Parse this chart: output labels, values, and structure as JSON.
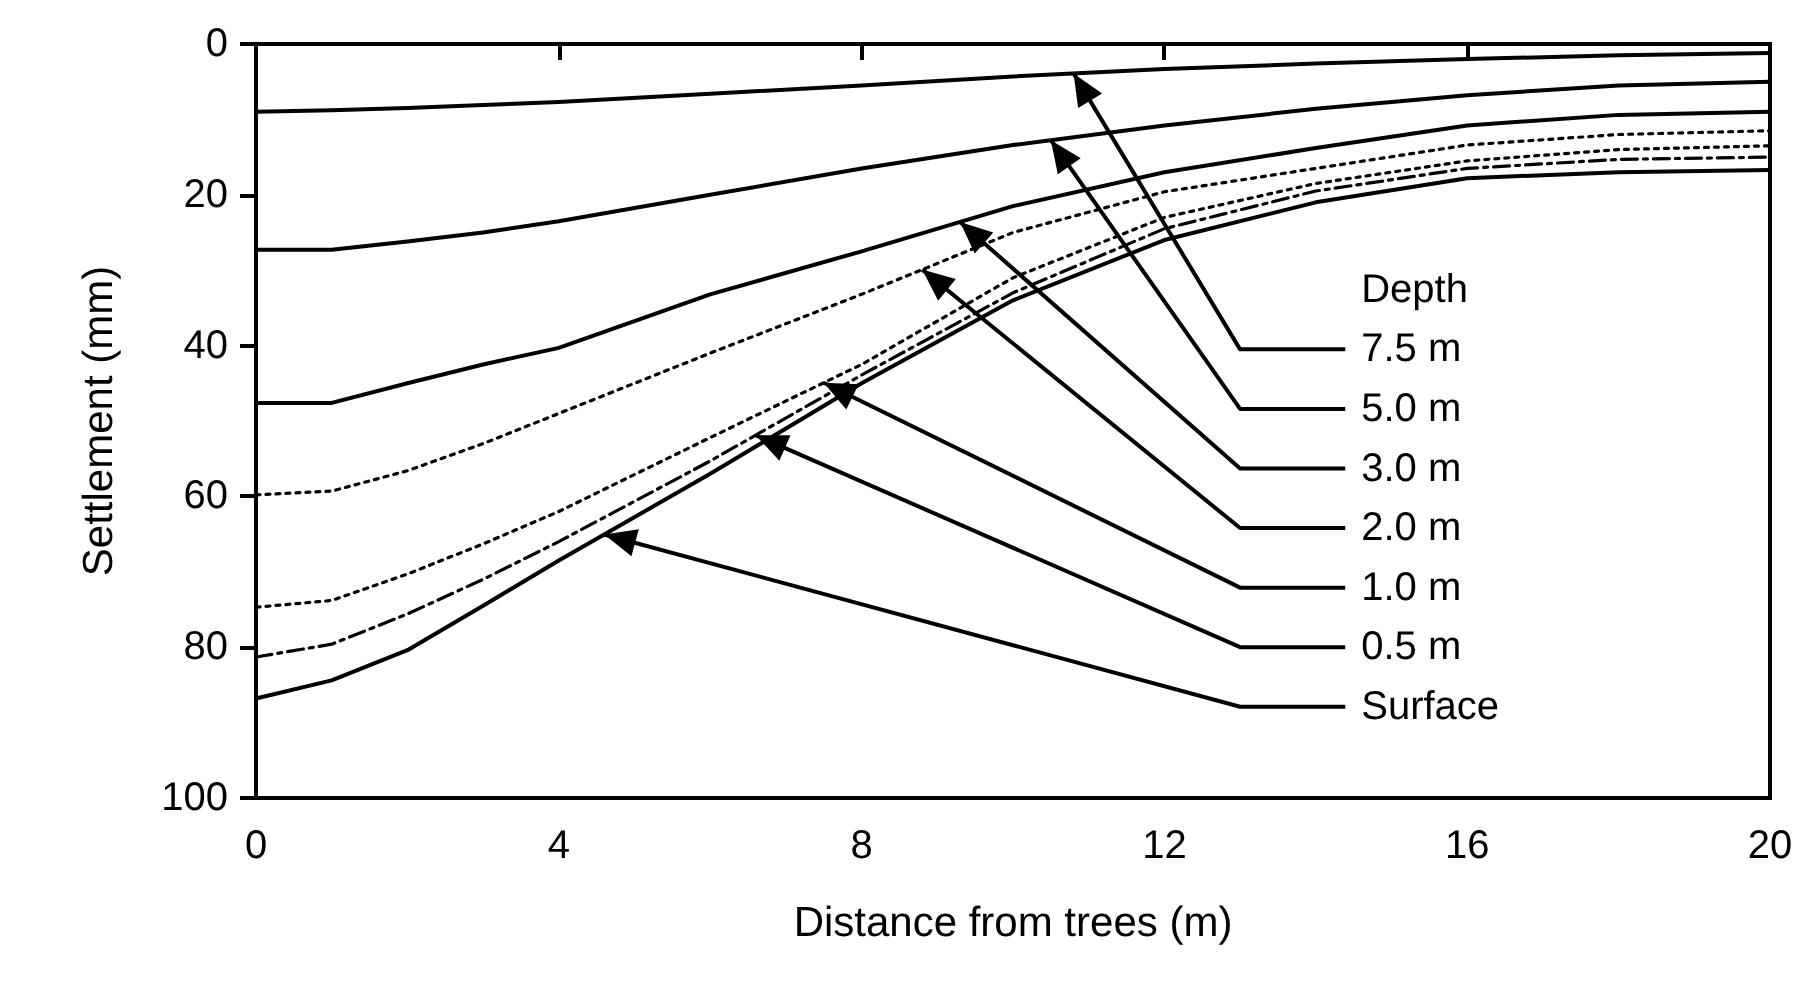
{
  "chart_data": {
    "type": "line",
    "xlabel": "Distance from trees (m)",
    "ylabel": "Settlement (mm)",
    "legend_title": "Depth",
    "xlim": [
      0,
      20
    ],
    "xticks": [
      0,
      4,
      8,
      12,
      16,
      20
    ],
    "ylim": [
      100,
      0
    ],
    "yticks": [
      0,
      20,
      40,
      60,
      80,
      100
    ],
    "grid": false,
    "legend": false,
    "marker": "none",
    "x": [
      0,
      1,
      2,
      3,
      4,
      6,
      8,
      10,
      12,
      14,
      16,
      18,
      20
    ],
    "series": [
      {
        "name": "7.5 m",
        "color": "#000000",
        "line_style": "solid",
        "values": [
          9,
          8.8,
          8.5,
          8.1,
          7.7,
          6.6,
          5.5,
          4.3,
          3.3,
          2.6,
          2,
          1.5,
          1.2
        ]
      },
      {
        "name": "5.0 m",
        "color": "#000000",
        "line_style": "solid",
        "values": [
          27.3,
          27.3,
          26.2,
          25,
          23.5,
          20,
          16.5,
          13.4,
          10.8,
          8.6,
          6.8,
          5.5,
          5
        ]
      },
      {
        "name": "3.0 m",
        "color": "#000000",
        "line_style": "solid",
        "values": [
          47.6,
          47.6,
          45,
          42.5,
          40.3,
          33.2,
          27.5,
          21.5,
          17,
          13.8,
          10.8,
          9.4,
          9
        ]
      },
      {
        "name": "2.0 m",
        "color": "#000000",
        "line_style": "dotted",
        "values": [
          59.8,
          59.3,
          56.6,
          53,
          49,
          41,
          33.2,
          25,
          19.6,
          16.5,
          13.4,
          12,
          11.5
        ]
      },
      {
        "name": "1.0 m",
        "color": "#000000",
        "line_style": "dotted",
        "values": [
          74.7,
          73.8,
          70.3,
          66.3,
          62,
          52.2,
          42.5,
          31,
          23,
          18.5,
          15.5,
          14,
          13.5
        ]
      },
      {
        "name": "0.5 m",
        "color": "#000000",
        "line_style": "dashed",
        "values": [
          81.3,
          79.6,
          75.6,
          71,
          66,
          55.3,
          43.9,
          33,
          24.5,
          19.5,
          16.5,
          15.3,
          15
        ]
      },
      {
        "name": "Surface",
        "color": "#000000",
        "line_style": "solid",
        "values": [
          86.8,
          84.4,
          80.4,
          74.5,
          68.5,
          57,
          45,
          34,
          26,
          21,
          17.8,
          17,
          16.7
        ]
      }
    ]
  }
}
